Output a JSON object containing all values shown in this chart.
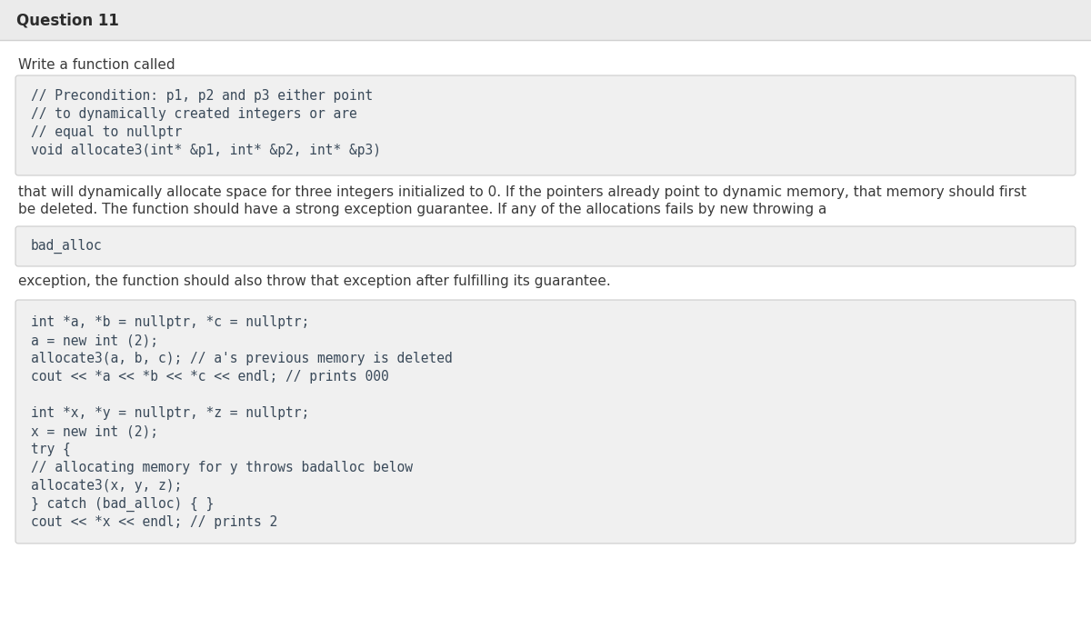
{
  "title": "Question 11",
  "bg_color": "#f5f5f5",
  "header_bg": "#ebebeb",
  "header_border": "#d0d0d0",
  "header_text_color": "#2c2c2c",
  "header_font_size": 12,
  "body_text_color": "#3a3a3a",
  "body_font_size": 11,
  "code_bg": "#f0f0f0",
  "code_border": "#cccccc",
  "code_text_color": "#3a4a5a",
  "code_font_size": 10.5,
  "main_bg": "#ffffff",
  "intro_text": "Write a function called",
  "code_block1_lines": [
    "// Precondition: p1, p2 and p3 either point",
    "// to dynamically created integers or are",
    "// equal to nullptr",
    "void allocate3(int* &p1, int* &p2, int* &p3)"
  ],
  "middle_text1_lines": [
    "that will dynamically allocate space for three integers initialized to 0. If the pointers already point to dynamic memory, that memory should first",
    "be deleted. The function should have a strong exception guarantee. If any of the allocations fails by new throwing a"
  ],
  "code_block2_lines": [
    "bad_alloc"
  ],
  "middle_text2": "exception, the function should also throw that exception after fulfilling its guarantee.",
  "code_block3_lines": [
    "int *a, *b = nullptr, *c = nullptr;",
    "a = new int (2);",
    "allocate3(a, b, c); // a's previous memory is deleted",
    "cout << *a << *b << *c << endl; // prints 000",
    "",
    "int *x, *y = nullptr, *z = nullptr;",
    "x = new int (2);",
    "try {",
    "// allocating memory for y throws badalloc below",
    "allocate3(x, y, z);",
    "} catch (bad_alloc) { }",
    "cout << *x << endl; // prints 2"
  ],
  "fig_width": 12.0,
  "fig_height": 7.02,
  "dpi": 100
}
